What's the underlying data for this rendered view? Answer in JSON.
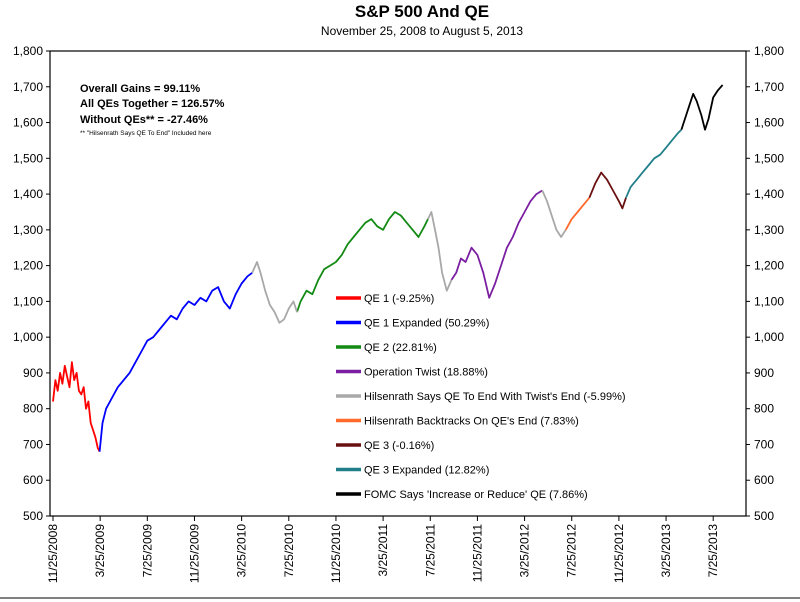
{
  "chart_data": {
    "type": "line",
    "title": "S&P 500 And QE",
    "subtitle": "November 25, 2008 to August 5, 2013",
    "ylim": [
      500,
      1800
    ],
    "y_ticks": [
      "1,800",
      "1,700",
      "1,600",
      "1,500",
      "1,400",
      "1,300",
      "1,200",
      "1,100",
      "1,000",
      "900",
      "800",
      "700",
      "600",
      "500"
    ],
    "x_range_months": [
      0,
      57
    ],
    "x_ticks": [
      {
        "label": "11/25/2008",
        "m": 0
      },
      {
        "label": "3/25/2009",
        "m": 4
      },
      {
        "label": "7/25/2009",
        "m": 8
      },
      {
        "label": "11/25/2009",
        "m": 12
      },
      {
        "label": "3/25/2010",
        "m": 16
      },
      {
        "label": "7/25/2010",
        "m": 20
      },
      {
        "label": "11/25/2010",
        "m": 24
      },
      {
        "label": "3/25/2011",
        "m": 28
      },
      {
        "label": "7/25/2011",
        "m": 32
      },
      {
        "label": "11/25/2011",
        "m": 36
      },
      {
        "label": "3/25/2012",
        "m": 40
      },
      {
        "label": "7/25/2012",
        "m": 44
      },
      {
        "label": "11/25/2012",
        "m": 48
      },
      {
        "label": "3/25/2013",
        "m": 52
      },
      {
        "label": "7/25/2013",
        "m": 56
      }
    ],
    "annotations": {
      "line1": "Overall Gains = 99.11%",
      "line2": "All QEs Together = 126.57%",
      "line3": "Without QEs** = -27.46%",
      "footnote": "** \"Hilsenrath Says QE To End\" Included here"
    },
    "series": [
      {
        "name": "QE 1 (-9.25%)",
        "color": "#ff0000",
        "points": [
          [
            0,
            820
          ],
          [
            0.2,
            880
          ],
          [
            0.4,
            850
          ],
          [
            0.6,
            900
          ],
          [
            0.8,
            870
          ],
          [
            1,
            920
          ],
          [
            1.2,
            890
          ],
          [
            1.4,
            860
          ],
          [
            1.6,
            930
          ],
          [
            1.8,
            880
          ],
          [
            2,
            900
          ],
          [
            2.2,
            850
          ],
          [
            2.4,
            840
          ],
          [
            2.6,
            860
          ],
          [
            2.8,
            800
          ],
          [
            3,
            820
          ],
          [
            3.2,
            760
          ],
          [
            3.4,
            740
          ],
          [
            3.6,
            720
          ],
          [
            3.8,
            690
          ],
          [
            3.95,
            680
          ]
        ]
      },
      {
        "name": "QE 1 Expanded (50.29%)",
        "color": "#0000ff",
        "points": [
          [
            3.95,
            680
          ],
          [
            4.2,
            760
          ],
          [
            4.5,
            800
          ],
          [
            5,
            830
          ],
          [
            5.5,
            860
          ],
          [
            6,
            880
          ],
          [
            6.5,
            900
          ],
          [
            7,
            930
          ],
          [
            7.5,
            960
          ],
          [
            8,
            990
          ],
          [
            8.5,
            1000
          ],
          [
            9,
            1020
          ],
          [
            9.5,
            1040
          ],
          [
            10,
            1060
          ],
          [
            10.5,
            1050
          ],
          [
            11,
            1080
          ],
          [
            11.5,
            1100
          ],
          [
            12,
            1090
          ],
          [
            12.5,
            1110
          ],
          [
            13,
            1100
          ],
          [
            13.5,
            1130
          ],
          [
            14,
            1140
          ],
          [
            14.5,
            1100
          ],
          [
            15,
            1080
          ],
          [
            15.5,
            1120
          ],
          [
            16,
            1150
          ],
          [
            16.5,
            1170
          ],
          [
            16.9,
            1180
          ]
        ]
      },
      {
        "name": "QE 2 (22.81%)",
        "color": "#138a13",
        "points": [
          [
            20.7,
            1070
          ],
          [
            21,
            1100
          ],
          [
            21.5,
            1130
          ],
          [
            22,
            1120
          ],
          [
            22.5,
            1160
          ],
          [
            23,
            1190
          ],
          [
            23.5,
            1200
          ],
          [
            24,
            1210
          ],
          [
            24.5,
            1230
          ],
          [
            25,
            1260
          ],
          [
            25.5,
            1280
          ],
          [
            26,
            1300
          ],
          [
            26.5,
            1320
          ],
          [
            27,
            1330
          ],
          [
            27.5,
            1310
          ],
          [
            28,
            1300
          ],
          [
            28.5,
            1330
          ],
          [
            29,
            1350
          ],
          [
            29.5,
            1340
          ],
          [
            30,
            1320
          ],
          [
            30.5,
            1300
          ],
          [
            31,
            1280
          ],
          [
            31.5,
            1310
          ],
          [
            31.8,
            1330
          ]
        ]
      },
      {
        "name": "Operation Twist (18.88%)",
        "color": "#7b1fa2",
        "points": [
          [
            33.8,
            1160
          ],
          [
            34.2,
            1180
          ],
          [
            34.6,
            1220
          ],
          [
            35,
            1210
          ],
          [
            35.5,
            1250
          ],
          [
            36,
            1230
          ],
          [
            36.5,
            1180
          ],
          [
            37,
            1110
          ],
          [
            37.5,
            1150
          ],
          [
            38,
            1200
          ],
          [
            38.5,
            1250
          ],
          [
            39,
            1280
          ],
          [
            39.5,
            1320
          ],
          [
            40,
            1350
          ],
          [
            40.5,
            1380
          ],
          [
            41,
            1400
          ],
          [
            41.5,
            1410
          ]
        ]
      },
      {
        "name": "Hilsenrath Says QE To End With Twist's End (-5.99%)",
        "color": "#a8a8a8",
        "segments": [
          [
            [
              16.9,
              1180
            ],
            [
              17.3,
              1210
            ],
            [
              17.6,
              1180
            ],
            [
              18,
              1130
            ],
            [
              18.4,
              1090
            ],
            [
              18.8,
              1070
            ],
            [
              19.2,
              1040
            ],
            [
              19.6,
              1050
            ],
            [
              20,
              1080
            ],
            [
              20.4,
              1100
            ],
            [
              20.7,
              1070
            ]
          ],
          [
            [
              31.8,
              1330
            ],
            [
              32.1,
              1350
            ],
            [
              32.4,
              1300
            ],
            [
              32.7,
              1250
            ],
            [
              33,
              1180
            ],
            [
              33.4,
              1130
            ],
            [
              33.8,
              1160
            ]
          ],
          [
            [
              41.5,
              1410
            ],
            [
              41.9,
              1380
            ],
            [
              42.3,
              1340
            ],
            [
              42.7,
              1300
            ],
            [
              43.1,
              1280
            ],
            [
              43.5,
              1300
            ]
          ]
        ]
      },
      {
        "name": "Hilsenrath Backtracks On QE's End (7.83%)",
        "color": "#ff6a2a",
        "points": [
          [
            43.5,
            1300
          ],
          [
            44,
            1330
          ],
          [
            44.5,
            1350
          ],
          [
            45,
            1370
          ],
          [
            45.5,
            1390
          ]
        ]
      },
      {
        "name": "QE 3 (-0.16%)",
        "color": "#6a1010",
        "points": [
          [
            45.5,
            1390
          ],
          [
            46,
            1430
          ],
          [
            46.5,
            1460
          ],
          [
            47,
            1440
          ],
          [
            47.5,
            1410
          ],
          [
            48,
            1380
          ],
          [
            48.3,
            1360
          ],
          [
            48.6,
            1390
          ]
        ]
      },
      {
        "name": "QE 3 Expanded (12.82%)",
        "color": "#217f8a",
        "points": [
          [
            48.6,
            1390
          ],
          [
            49,
            1420
          ],
          [
            49.5,
            1440
          ],
          [
            50,
            1460
          ],
          [
            50.5,
            1480
          ],
          [
            51,
            1500
          ],
          [
            51.5,
            1510
          ],
          [
            52,
            1530
          ],
          [
            52.5,
            1550
          ],
          [
            53,
            1570
          ],
          [
            53.3,
            1580
          ]
        ]
      },
      {
        "name": "FOMC Says 'Increase or Reduce' QE (7.86%)",
        "color": "#000000",
        "points": [
          [
            53.3,
            1580
          ],
          [
            53.7,
            1620
          ],
          [
            54,
            1650
          ],
          [
            54.3,
            1680
          ],
          [
            54.6,
            1660
          ],
          [
            55,
            1620
          ],
          [
            55.3,
            1580
          ],
          [
            55.6,
            1610
          ],
          [
            56,
            1670
          ],
          [
            56.4,
            1690
          ],
          [
            56.8,
            1705
          ]
        ]
      }
    ]
  }
}
